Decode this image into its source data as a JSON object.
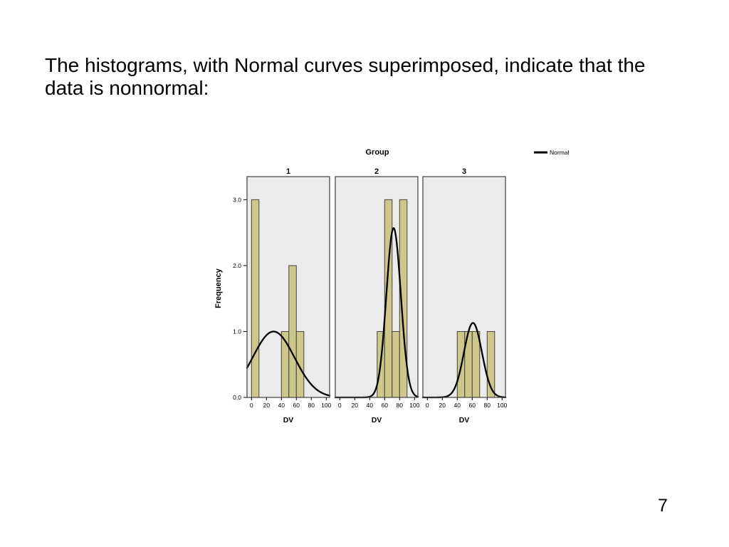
{
  "slide": {
    "text": "The histograms, with Normal curves superimposed, indicate that the data is nonnormal:",
    "page_number": "7"
  },
  "chart_data": {
    "type": "bar",
    "subtype": "paneled-histogram-with-normal-curves",
    "title": "Group",
    "xlabel": "DV",
    "ylabel": "Frequency",
    "legend": [
      {
        "label": "Normal",
        "marker": "line",
        "color": "#000000"
      }
    ],
    "legend_position": "top-right",
    "xlim": [
      -6,
      104.5
    ],
    "ylim": [
      0,
      3.35
    ],
    "xticks": [
      0,
      20,
      40,
      60,
      80,
      100
    ],
    "ytick_values": [
      0,
      1,
      2,
      3
    ],
    "ytick_labels": [
      "0.0",
      "1.0",
      "2.0",
      "3.0"
    ],
    "bin_width": 10,
    "grid": false,
    "panels": [
      {
        "label": "1",
        "bars": [
          {
            "x0": 0,
            "x1": 10,
            "h": 3
          },
          {
            "x0": 40,
            "x1": 50,
            "h": 1
          },
          {
            "x0": 50,
            "x1": 60,
            "h": 2
          },
          {
            "x0": 60,
            "x1": 70,
            "h": 1
          }
        ],
        "normal_curve": {
          "mean": 29.5,
          "sd": 28,
          "peak": 1.0
        }
      },
      {
        "label": "2",
        "bars": [
          {
            "x0": 50,
            "x1": 60,
            "h": 1
          },
          {
            "x0": 60,
            "x1": 70,
            "h": 3
          },
          {
            "x0": 70,
            "x1": 80,
            "h": 1
          },
          {
            "x0": 80,
            "x1": 90,
            "h": 3
          }
        ],
        "normal_curve": {
          "mean": 72,
          "sd": 9.7,
          "peak": 2.57
        }
      },
      {
        "label": "3",
        "bars": [
          {
            "x0": 40,
            "x1": 50,
            "h": 1
          },
          {
            "x0": 50,
            "x1": 60,
            "h": 1
          },
          {
            "x0": 60,
            "x1": 70,
            "h": 1
          },
          {
            "x0": 80,
            "x1": 90,
            "h": 1
          }
        ],
        "normal_curve": {
          "mean": 61,
          "sd": 12,
          "peak": 1.13
        }
      }
    ],
    "colors": {
      "bar_fill": "#cdc78b",
      "bar_stroke": "#44443a",
      "panel_bg": "#ebebeb",
      "panel_border": "#4d4d4d",
      "curve": "#000000",
      "axis": "#000000",
      "text": "#000000"
    }
  }
}
